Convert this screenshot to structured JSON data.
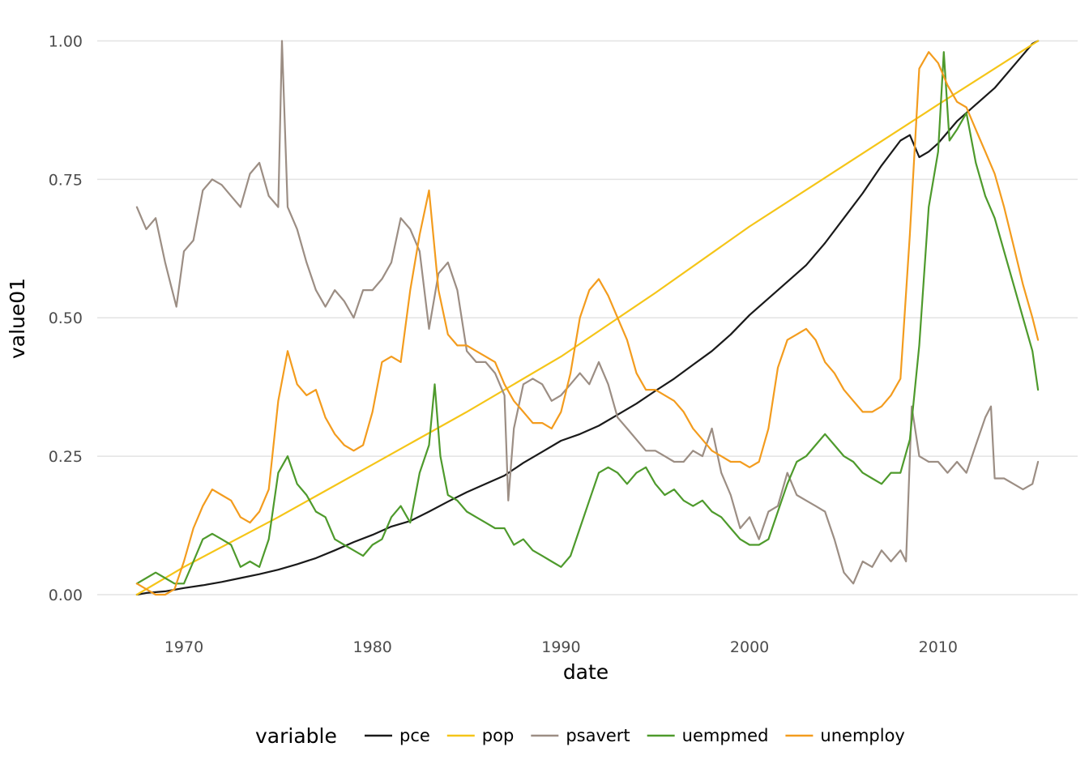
{
  "chart_data": {
    "type": "line",
    "title": "",
    "xlabel": "date",
    "ylabel": "value01",
    "xlim": [
      1965.4,
      2017.4
    ],
    "ylim": [
      -0.06,
      1.03
    ],
    "x_ticks": [
      1970,
      1980,
      1990,
      2000,
      2010
    ],
    "x_tick_labels": [
      "1970",
      "1980",
      "1990",
      "2000",
      "2010"
    ],
    "y_ticks": [
      0,
      0.25,
      0.5,
      0.75,
      1
    ],
    "y_tick_labels": [
      "0.00",
      "0.25",
      "0.50",
      "0.75",
      "1.00"
    ],
    "grid": true,
    "legend": {
      "title": "variable",
      "placement": "bottom"
    },
    "series": [
      {
        "name": "pce",
        "color": "#1a1a1a",
        "x": [
          1967.5,
          1968,
          1969,
          1970,
          1971,
          1972,
          1973,
          1974,
          1975,
          1976,
          1977,
          1978,
          1979,
          1980,
          1981,
          1982,
          1983,
          1984,
          1985,
          1986,
          1987,
          1988,
          1989,
          1990,
          1991,
          1992,
          1993,
          1994,
          1995,
          1996,
          1997,
          1998,
          1999,
          2000,
          2001,
          2002,
          2003,
          2004,
          2005,
          2006,
          2007,
          2008,
          2008.5,
          2009,
          2009.5,
          2010,
          2011,
          2012,
          2013,
          2014,
          2015,
          2015.3
        ],
        "y": [
          0.0,
          0.003,
          0.006,
          0.012,
          0.017,
          0.023,
          0.03,
          0.037,
          0.045,
          0.055,
          0.066,
          0.08,
          0.095,
          0.108,
          0.123,
          0.133,
          0.15,
          0.168,
          0.185,
          0.2,
          0.215,
          0.238,
          0.258,
          0.278,
          0.29,
          0.305,
          0.325,
          0.345,
          0.368,
          0.39,
          0.415,
          0.44,
          0.47,
          0.505,
          0.535,
          0.565,
          0.595,
          0.635,
          0.68,
          0.725,
          0.775,
          0.82,
          0.83,
          0.79,
          0.8,
          0.815,
          0.855,
          0.885,
          0.915,
          0.955,
          0.995,
          1.0
        ]
      },
      {
        "name": "pop",
        "color": "#f5c518",
        "x": [
          1967.5,
          1970,
          1975,
          1980,
          1985,
          1990,
          1995,
          2000,
          2005,
          2010,
          2015.3
        ],
        "y": [
          0.0,
          0.05,
          0.14,
          0.235,
          0.33,
          0.43,
          0.545,
          0.665,
          0.775,
          0.885,
          1.0
        ]
      },
      {
        "name": "psavert",
        "color": "#9c8e84",
        "x": [
          1967.5,
          1968,
          1968.5,
          1969,
          1969.3,
          1969.6,
          1970,
          1970.5,
          1971,
          1971.5,
          1972,
          1972.5,
          1973,
          1973.5,
          1974,
          1974.5,
          1975,
          1975.2,
          1975.5,
          1976,
          1976.5,
          1977,
          1977.5,
          1978,
          1978.5,
          1979,
          1979.5,
          1980,
          1980.5,
          1981,
          1981.5,
          1982,
          1982.5,
          1983,
          1983.5,
          1984,
          1984.5,
          1985,
          1985.5,
          1986,
          1986.5,
          1987,
          1987.2,
          1987.5,
          1988,
          1988.5,
          1989,
          1989.5,
          1990,
          1990.5,
          1991,
          1991.5,
          1992,
          1992.5,
          1993,
          1993.5,
          1994,
          1994.5,
          1995,
          1995.5,
          1996,
          1996.5,
          1997,
          1997.5,
          1998,
          1998.5,
          1999,
          1999.5,
          2000,
          2000.5,
          2001,
          2001.5,
          2002,
          2002.5,
          2003,
          2003.5,
          2004,
          2004.5,
          2005,
          2005.5,
          2006,
          2006.5,
          2007,
          2007.5,
          2008,
          2008.3,
          2008.6,
          2009,
          2009.5,
          2010,
          2010.5,
          2011,
          2011.5,
          2012,
          2012.5,
          2012.8,
          2013,
          2013.5,
          2014,
          2014.5,
          2015,
          2015.3
        ],
        "y": [
          0.7,
          0.66,
          0.68,
          0.6,
          0.56,
          0.52,
          0.62,
          0.64,
          0.73,
          0.75,
          0.74,
          0.72,
          0.7,
          0.76,
          0.78,
          0.72,
          0.7,
          1.0,
          0.7,
          0.66,
          0.6,
          0.55,
          0.52,
          0.55,
          0.53,
          0.5,
          0.55,
          0.55,
          0.57,
          0.6,
          0.68,
          0.66,
          0.62,
          0.48,
          0.58,
          0.6,
          0.55,
          0.44,
          0.42,
          0.42,
          0.4,
          0.36,
          0.17,
          0.3,
          0.38,
          0.39,
          0.38,
          0.35,
          0.36,
          0.38,
          0.4,
          0.38,
          0.42,
          0.38,
          0.32,
          0.3,
          0.28,
          0.26,
          0.26,
          0.25,
          0.24,
          0.24,
          0.26,
          0.25,
          0.3,
          0.22,
          0.18,
          0.12,
          0.14,
          0.1,
          0.15,
          0.16,
          0.22,
          0.18,
          0.17,
          0.16,
          0.15,
          0.1,
          0.04,
          0.02,
          0.06,
          0.05,
          0.08,
          0.06,
          0.08,
          0.06,
          0.34,
          0.25,
          0.24,
          0.24,
          0.22,
          0.24,
          0.22,
          0.27,
          0.32,
          0.34,
          0.21,
          0.21,
          0.2,
          0.19,
          0.2,
          0.24
        ]
      },
      {
        "name": "uempmed",
        "color": "#4e9a2c",
        "x": [
          1967.5,
          1968,
          1968.5,
          1969,
          1969.5,
          1970,
          1970.5,
          1971,
          1971.5,
          1972,
          1972.5,
          1973,
          1973.5,
          1974,
          1974.5,
          1975,
          1975.5,
          1976,
          1976.5,
          1977,
          1977.5,
          1978,
          1978.5,
          1979,
          1979.5,
          1980,
          1980.5,
          1981,
          1981.5,
          1982,
          1982.5,
          1983,
          1983.3,
          1983.6,
          1984,
          1984.5,
          1985,
          1985.5,
          1986,
          1986.5,
          1987,
          1987.5,
          1988,
          1988.5,
          1989,
          1989.5,
          1990,
          1990.5,
          1991,
          1991.5,
          1992,
          1992.5,
          1993,
          1993.5,
          1994,
          1994.5,
          1995,
          1995.5,
          1996,
          1996.5,
          1997,
          1997.5,
          1998,
          1998.5,
          1999,
          1999.5,
          2000,
          2000.5,
          2001,
          2001.5,
          2002,
          2002.5,
          2003,
          2003.5,
          2004,
          2004.5,
          2005,
          2005.5,
          2006,
          2006.5,
          2007,
          2007.5,
          2008,
          2008.5,
          2009,
          2009.5,
          2010,
          2010.3,
          2010.6,
          2011,
          2011.5,
          2012,
          2012.5,
          2013,
          2013.5,
          2014,
          2014.5,
          2015,
          2015.3
        ],
        "y": [
          0.02,
          0.03,
          0.04,
          0.03,
          0.02,
          0.02,
          0.06,
          0.1,
          0.11,
          0.1,
          0.09,
          0.05,
          0.06,
          0.05,
          0.1,
          0.22,
          0.25,
          0.2,
          0.18,
          0.15,
          0.14,
          0.1,
          0.09,
          0.08,
          0.07,
          0.09,
          0.1,
          0.14,
          0.16,
          0.13,
          0.22,
          0.27,
          0.38,
          0.25,
          0.18,
          0.17,
          0.15,
          0.14,
          0.13,
          0.12,
          0.12,
          0.09,
          0.1,
          0.08,
          0.07,
          0.06,
          0.05,
          0.07,
          0.12,
          0.17,
          0.22,
          0.23,
          0.22,
          0.2,
          0.22,
          0.23,
          0.2,
          0.18,
          0.19,
          0.17,
          0.16,
          0.17,
          0.15,
          0.14,
          0.12,
          0.1,
          0.09,
          0.09,
          0.1,
          0.15,
          0.2,
          0.24,
          0.25,
          0.27,
          0.29,
          0.27,
          0.25,
          0.24,
          0.22,
          0.21,
          0.2,
          0.22,
          0.22,
          0.28,
          0.45,
          0.7,
          0.8,
          0.98,
          0.82,
          0.84,
          0.87,
          0.78,
          0.72,
          0.68,
          0.62,
          0.56,
          0.5,
          0.44,
          0.37
        ]
      },
      {
        "name": "unemploy",
        "color": "#f39c1e",
        "x": [
          1967.5,
          1968,
          1968.5,
          1969,
          1969.5,
          1970,
          1970.5,
          1971,
          1971.5,
          1972,
          1972.5,
          1973,
          1973.5,
          1974,
          1974.5,
          1975,
          1975.5,
          1976,
          1976.5,
          1977,
          1977.5,
          1978,
          1978.5,
          1979,
          1979.5,
          1980,
          1980.5,
          1981,
          1981.5,
          1982,
          1982.5,
          1983,
          1983.5,
          1984,
          1984.5,
          1985,
          1985.5,
          1986,
          1986.5,
          1987,
          1987.5,
          1988,
          1988.5,
          1989,
          1989.5,
          1990,
          1990.5,
          1991,
          1991.5,
          1992,
          1992.5,
          1993,
          1993.5,
          1994,
          1994.5,
          1995,
          1995.5,
          1996,
          1996.5,
          1997,
          1997.5,
          1998,
          1998.5,
          1999,
          1999.5,
          2000,
          2000.5,
          2001,
          2001.5,
          2002,
          2002.5,
          2003,
          2003.5,
          2004,
          2004.5,
          2005,
          2005.5,
          2006,
          2006.5,
          2007,
          2007.5,
          2008,
          2008.5,
          2009,
          2009.5,
          2010,
          2010.5,
          2011,
          2011.5,
          2012,
          2012.5,
          2013,
          2013.5,
          2014,
          2014.5,
          2015,
          2015.3
        ],
        "y": [
          0.02,
          0.01,
          0.0,
          0.0,
          0.01,
          0.06,
          0.12,
          0.16,
          0.19,
          0.18,
          0.17,
          0.14,
          0.13,
          0.15,
          0.19,
          0.35,
          0.44,
          0.38,
          0.36,
          0.37,
          0.32,
          0.29,
          0.27,
          0.26,
          0.27,
          0.33,
          0.42,
          0.43,
          0.42,
          0.55,
          0.65,
          0.73,
          0.55,
          0.47,
          0.45,
          0.45,
          0.44,
          0.43,
          0.42,
          0.38,
          0.35,
          0.33,
          0.31,
          0.31,
          0.3,
          0.33,
          0.4,
          0.5,
          0.55,
          0.57,
          0.54,
          0.5,
          0.46,
          0.4,
          0.37,
          0.37,
          0.36,
          0.35,
          0.33,
          0.3,
          0.28,
          0.26,
          0.25,
          0.24,
          0.24,
          0.23,
          0.24,
          0.3,
          0.41,
          0.46,
          0.47,
          0.48,
          0.46,
          0.42,
          0.4,
          0.37,
          0.35,
          0.33,
          0.33,
          0.34,
          0.36,
          0.39,
          0.65,
          0.95,
          0.98,
          0.96,
          0.92,
          0.89,
          0.88,
          0.84,
          0.8,
          0.76,
          0.7,
          0.63,
          0.56,
          0.5,
          0.46
        ]
      }
    ]
  }
}
